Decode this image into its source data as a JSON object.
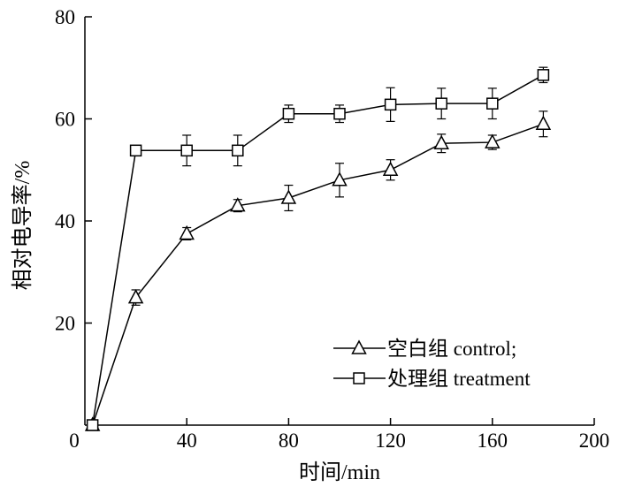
{
  "chart_data": {
    "type": "line",
    "title": "",
    "xlabel": "时间/min",
    "ylabel": "相对电导率/%",
    "xlim": [
      0,
      200
    ],
    "ylim": [
      0,
      80
    ],
    "xticks": [
      0,
      40,
      80,
      120,
      160,
      200
    ],
    "yticks": [
      20,
      40,
      60,
      80
    ],
    "x_tick_labels": [
      "0",
      "40",
      "80",
      "120",
      "160",
      "200"
    ],
    "y_tick_labels": [
      "20",
      "40",
      "60",
      "80"
    ],
    "grid": false,
    "legend_position": "lower-right",
    "series": [
      {
        "name": "空白组 control;",
        "marker": "triangle",
        "points": [
          {
            "x": 3,
            "y": 0,
            "err": 0
          },
          {
            "x": 20,
            "y": 25,
            "err": 1.5
          },
          {
            "x": 40,
            "y": 37.5,
            "err": 1.2
          },
          {
            "x": 60,
            "y": 43,
            "err": 1.2
          },
          {
            "x": 80,
            "y": 44.5,
            "err": 2.5
          },
          {
            "x": 100,
            "y": 48,
            "err": 3.3
          },
          {
            "x": 120,
            "y": 50,
            "err": 2
          },
          {
            "x": 140,
            "y": 55.2,
            "err": 1.8
          },
          {
            "x": 160,
            "y": 55.4,
            "err": 1.4
          },
          {
            "x": 180,
            "y": 59,
            "err": 2.5
          }
        ]
      },
      {
        "name": "处理组 treatment",
        "marker": "square",
        "points": [
          {
            "x": 3,
            "y": 0,
            "err": 0
          },
          {
            "x": 20,
            "y": 53.8,
            "err": 1
          },
          {
            "x": 40,
            "y": 53.8,
            "err": 3
          },
          {
            "x": 60,
            "y": 53.8,
            "err": 3
          },
          {
            "x": 80,
            "y": 61,
            "err": 1.7
          },
          {
            "x": 100,
            "y": 61,
            "err": 1.7
          },
          {
            "x": 120,
            "y": 62.8,
            "err": 3.3
          },
          {
            "x": 140,
            "y": 63,
            "err": 3
          },
          {
            "x": 160,
            "y": 63,
            "err": 3
          },
          {
            "x": 180,
            "y": 68.6,
            "err": 1.5
          }
        ]
      }
    ]
  }
}
